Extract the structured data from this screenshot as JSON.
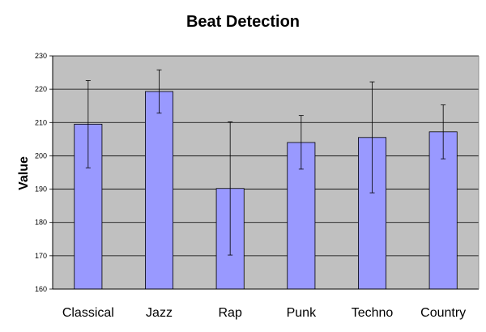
{
  "chart_data": {
    "type": "bar",
    "title": "Beat Detection",
    "xlabel": "",
    "ylabel": "Value",
    "categories": [
      "Classical",
      "Jazz",
      "Rap",
      "Punk",
      "Techno",
      "Country"
    ],
    "values": [
      209.5,
      219.3,
      190.2,
      204.0,
      205.5,
      207.2
    ],
    "error_low": [
      196.4,
      212.8,
      170.2,
      196.0,
      188.9,
      199.1
    ],
    "error_high": [
      222.6,
      225.8,
      210.2,
      212.1,
      222.2,
      215.3
    ],
    "ylim": [
      160,
      230
    ],
    "yticks": [
      160,
      170,
      180,
      190,
      200,
      210,
      220,
      230
    ],
    "grid": true,
    "legend": "none",
    "colors": {
      "bar_fill": "#9999ff",
      "bar_stroke": "#000000",
      "plot_background": "#c0c0c0",
      "gridline": "#000000"
    }
  }
}
